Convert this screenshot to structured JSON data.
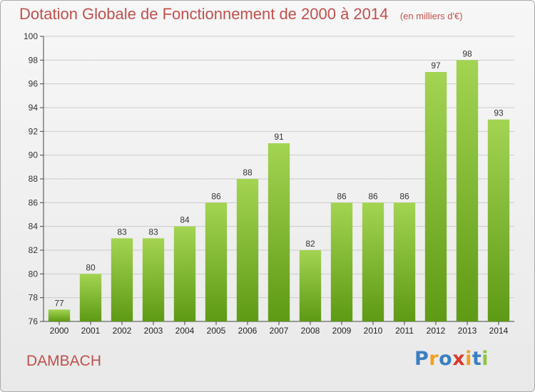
{
  "title": "Dotation Globale de Fonctionnement de 2000 à 2014",
  "subtitle": "(en milliers d'€)",
  "commune": "DAMBACH",
  "logo": {
    "text": "Proxiti",
    "colors": [
      "#3a7fc1",
      "#f0a020",
      "#3a7fc1",
      "#d93a2b",
      "#f0a020",
      "#3a7fc1",
      "#8cc63f"
    ]
  },
  "colors": {
    "title": "#c0504d",
    "bar_light": "#a3d452",
    "bar_dark": "#5e9a14",
    "gridline": "#cccccc"
  },
  "chart_data": {
    "type": "bar",
    "categories": [
      "2000",
      "2001",
      "2002",
      "2003",
      "2004",
      "2005",
      "2006",
      "2007",
      "2008",
      "2009",
      "2010",
      "2011",
      "2012",
      "2013",
      "2014"
    ],
    "values": [
      77,
      80,
      83,
      83,
      84,
      86,
      88,
      91,
      82,
      86,
      86,
      86,
      97,
      98,
      93
    ],
    "ylim": [
      76,
      100
    ],
    "yticks": [
      76,
      78,
      80,
      82,
      84,
      86,
      88,
      90,
      92,
      94,
      96,
      98,
      100
    ],
    "grid": true,
    "legend": "none"
  }
}
